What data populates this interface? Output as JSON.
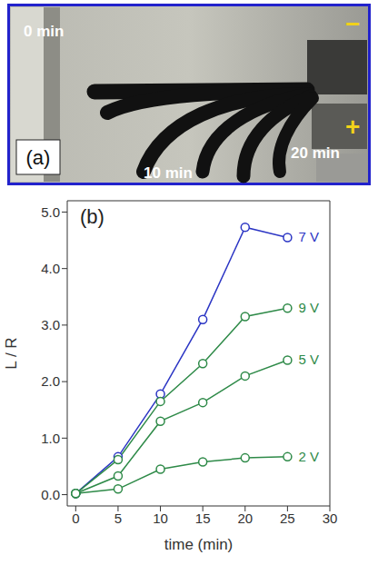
{
  "image": {
    "label": "(a)",
    "texts": [
      "0 min",
      "10 min",
      "20 min",
      "−",
      "+"
    ]
  },
  "chart_data": {
    "type": "line",
    "annotations": [
      "(b)"
    ],
    "x_label": "time (min)",
    "y_label": "L / R",
    "x": [
      0,
      5,
      10,
      15,
      20,
      25
    ],
    "xlim": [
      -1,
      30
    ],
    "xticks": [
      0,
      5,
      10,
      15,
      20,
      25,
      30
    ],
    "ylim": [
      -0.2,
      5.2
    ],
    "yticks": [
      {
        "value": 0,
        "label": "0.0"
      },
      {
        "value": 1,
        "label": "1.0"
      },
      {
        "value": 2,
        "label": "2.0"
      },
      {
        "value": 3,
        "label": "3.0"
      },
      {
        "value": 4,
        "label": "4.0"
      },
      {
        "value": 5,
        "label": "5.0"
      }
    ],
    "grid": false,
    "marker": "open_circle",
    "series": [
      {
        "name": "7 V",
        "color": "#2b35c4",
        "values": [
          0.02,
          0.67,
          1.78,
          3.1,
          4.73,
          4.55
        ]
      },
      {
        "name": "9 V",
        "color": "#2e8a48",
        "values": [
          0.02,
          0.62,
          1.65,
          2.32,
          3.15,
          3.3
        ]
      },
      {
        "name": "5 V",
        "color": "#2e8a48",
        "values": [
          0.02,
          0.33,
          1.3,
          1.63,
          2.1,
          2.38
        ]
      },
      {
        "name": "2 V",
        "color": "#2e8a48",
        "values": [
          0.02,
          0.1,
          0.45,
          0.58,
          0.65,
          0.67
        ]
      }
    ]
  }
}
